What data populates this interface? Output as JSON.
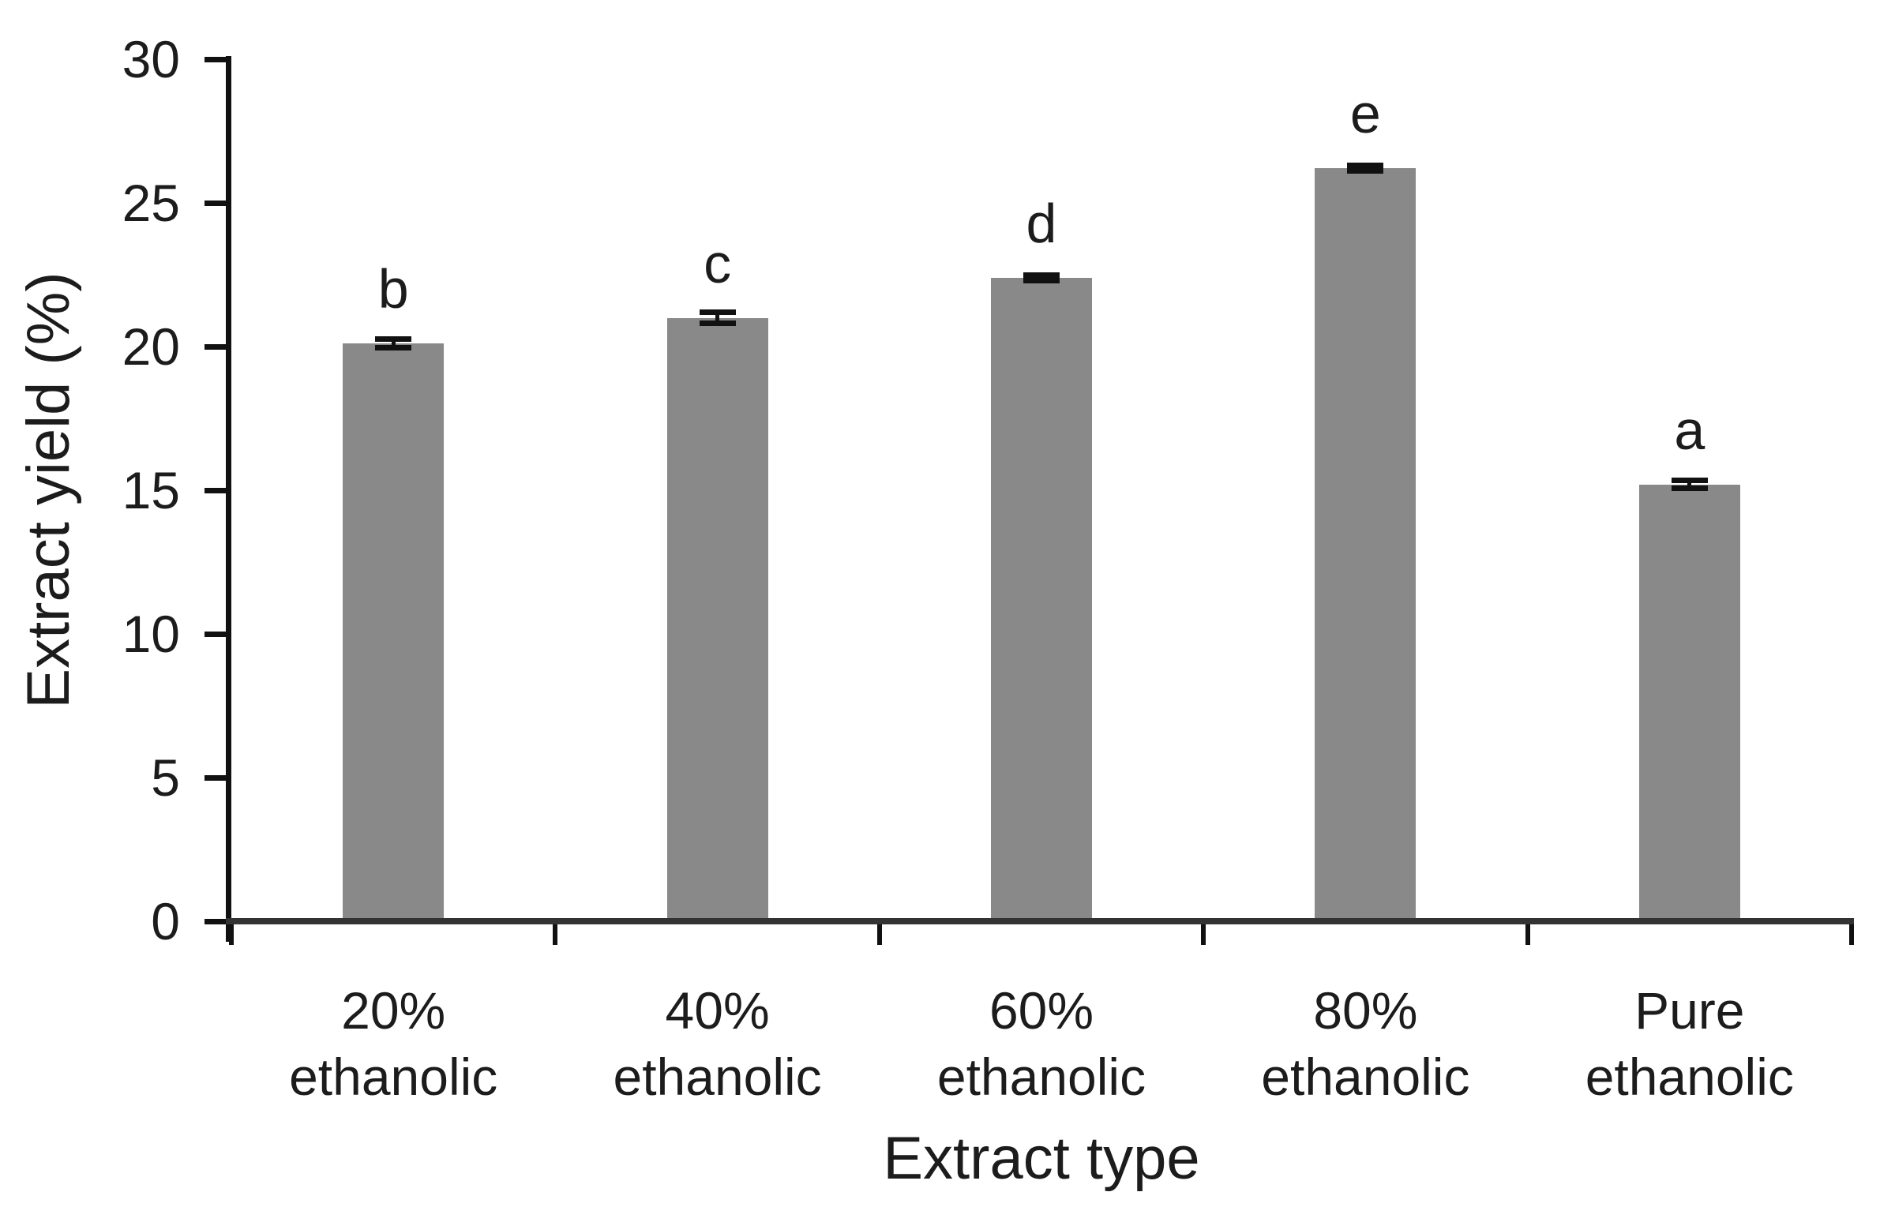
{
  "page": {
    "background": "#ffffff"
  },
  "chart_data": {
    "type": "bar",
    "title": "",
    "xlabel": "Extract type",
    "ylabel": "Extract yield (%)",
    "categories": [
      "20% ethanolic",
      "40% ethanolic",
      "60% ethanolic",
      "80% ethanolic",
      "Pure ethanolic"
    ],
    "categories_lines": [
      [
        "20%",
        "ethanolic"
      ],
      [
        "40%",
        "ethanolic"
      ],
      [
        "60%",
        "ethanolic"
      ],
      [
        "80%",
        "ethanolic"
      ],
      [
        "Pure",
        "ethanolic"
      ]
    ],
    "series": [
      {
        "name": "Extract yield",
        "values": [
          20.1,
          21.0,
          22.4,
          26.2,
          15.2
        ]
      }
    ],
    "values": [
      20.1,
      21.0,
      22.4,
      26.2,
      15.2
    ],
    "error_bars": [
      0.15,
      0.2,
      0.1,
      0.1,
      0.14
    ],
    "sig_letters": [
      "b",
      "c",
      "d",
      "e",
      "a"
    ],
    "yticks": [
      0,
      5,
      10,
      15,
      20,
      25,
      30
    ],
    "ylim": [
      0,
      30
    ],
    "grid": false,
    "legend": "none",
    "colors": {
      "bar": "#898989",
      "axis": "#111111",
      "baseline": "#333333",
      "text": "#1c1c1c",
      "error": "#111111"
    }
  }
}
